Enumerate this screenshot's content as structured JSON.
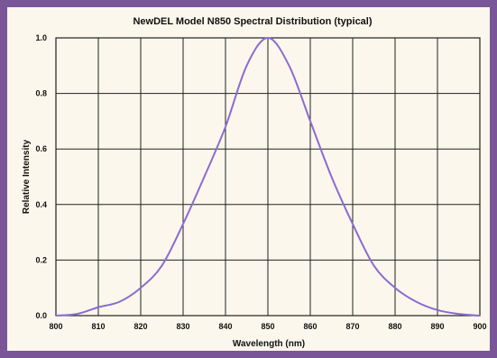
{
  "chart_data": {
    "type": "line",
    "title": "NewDEL Model N850 Spectral Distribution (typical)",
    "xlabel": "Wavelength (nm)",
    "ylabel": "Relative Intensity",
    "xlim": [
      800,
      900
    ],
    "ylim": [
      0,
      1.0
    ],
    "x_ticks": [
      "800",
      "810",
      "820",
      "830",
      "840",
      "850",
      "860",
      "870",
      "880",
      "890",
      "900"
    ],
    "y_ticks": [
      "0.0",
      "0.2",
      "0.4",
      "0.6",
      "0.8",
      "1.0"
    ],
    "grid": true,
    "series": [
      {
        "color": "#8a6cd0",
        "x": [
          800,
          805,
          810,
          815,
          820,
          825,
          830,
          835,
          840,
          845,
          850,
          855,
          860,
          865,
          870,
          875,
          880,
          885,
          890,
          895,
          900
        ],
        "y": [
          0.0,
          0.006,
          0.03,
          0.05,
          0.1,
          0.18,
          0.33,
          0.5,
          0.68,
          0.9,
          1.0,
          0.9,
          0.7,
          0.5,
          0.33,
          0.18,
          0.1,
          0.05,
          0.02,
          0.006,
          0.0
        ]
      }
    ]
  },
  "colors": {
    "frame": "#7a5598",
    "panel": "#fbf7ec",
    "grid": "#222222",
    "line": "#8a6cd0"
  }
}
